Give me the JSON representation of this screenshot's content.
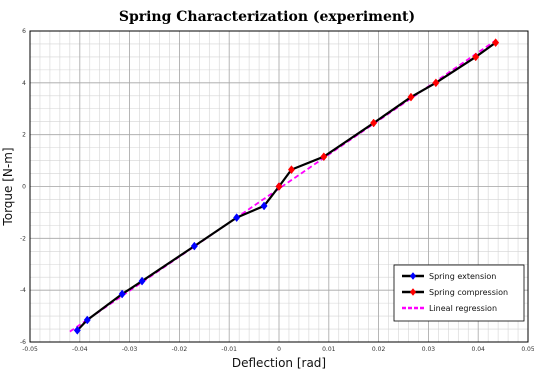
{
  "chart_data": {
    "type": "line",
    "title": "Spring Characterization (experiment)",
    "xlabel": "Deflection [rad]",
    "ylabel": "Torque [N-m]",
    "xlim": [
      -0.05,
      0.05
    ],
    "ylim": [
      -6,
      6
    ],
    "xticks": [
      -0.05,
      -0.04,
      -0.03,
      -0.02,
      -0.01,
      0,
      0.01,
      0.02,
      0.03,
      0.04,
      0.05
    ],
    "xtick_labels": [
      "-0.05",
      "-0.04",
      "-0.03",
      "-0.02",
      "-0.01",
      "0",
      "0.01",
      "0.02",
      "0.03",
      "0.04",
      "0.05"
    ],
    "yticks": [
      -6,
      -4,
      -2,
      0,
      2,
      4,
      6
    ],
    "ytick_labels": [
      "-6",
      "-4",
      "-2",
      "0",
      "2",
      "4",
      "6"
    ],
    "grid": true,
    "legend_position": "bottom-right",
    "series": [
      {
        "name": "Spring extension",
        "color": "#0000ff",
        "line_color": "#000000",
        "style": "solid",
        "marker": "diamond",
        "points": [
          [
            -0.0405,
            -5.55
          ],
          [
            -0.0385,
            -5.15
          ],
          [
            -0.0315,
            -4.15
          ],
          [
            -0.0275,
            -3.65
          ],
          [
            -0.017,
            -2.3
          ],
          [
            -0.0085,
            -1.2
          ],
          [
            -0.003,
            -0.75
          ],
          [
            0.0,
            0.0
          ]
        ]
      },
      {
        "name": "Spring compression",
        "color": "#ff0000",
        "line_color": "#000000",
        "style": "solid",
        "marker": "diamond",
        "points": [
          [
            0.0,
            0.0
          ],
          [
            0.0025,
            0.65
          ],
          [
            0.009,
            1.15
          ],
          [
            0.019,
            2.45
          ],
          [
            0.0265,
            3.45
          ],
          [
            0.0315,
            4.0
          ],
          [
            0.0395,
            5.0
          ],
          [
            0.0435,
            5.55
          ]
        ]
      },
      {
        "name": "Lineal regression",
        "color": "#ff00ff",
        "style": "dashed",
        "marker": "none",
        "points": [
          [
            -0.042,
            -5.6
          ],
          [
            0.044,
            5.7
          ]
        ]
      }
    ]
  }
}
